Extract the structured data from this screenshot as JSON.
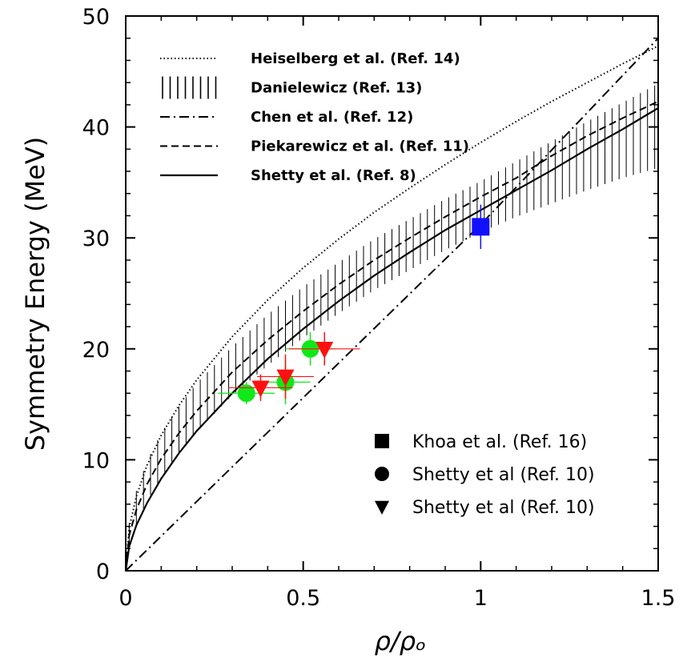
{
  "chart_data": {
    "type": "line",
    "xlabel": "ρ/ρₒ",
    "ylabel": "Symmetry Energy (MeV)",
    "xlim": [
      0,
      1.5
    ],
    "ylim": [
      0,
      50
    ],
    "xticks": [
      0,
      0.5,
      1,
      1.5
    ],
    "xtick_labels": [
      "0",
      "0.5",
      "1",
      "1.5"
    ],
    "yticks": [
      0,
      10,
      20,
      30,
      40,
      50
    ],
    "ytick_labels": [
      "0",
      "10",
      "20",
      "30",
      "40",
      "50"
    ],
    "grid": false,
    "line_legend_placement": "top-left",
    "marker_legend_placement": "bottom-right",
    "series": [
      {
        "name": "Heiselberg et al. (Ref. 14)",
        "style": "dotted",
        "color": "#000000",
        "x": [
          0,
          0.01,
          0.03,
          0.06,
          0.1,
          0.15,
          0.2,
          0.3,
          0.4,
          0.5,
          0.6,
          0.7,
          0.8,
          0.9,
          1.0,
          1.1,
          1.2,
          1.3,
          1.4,
          1.5
        ],
        "y": [
          0,
          3.9,
          6.7,
          9.5,
          12.2,
          14.9,
          17.2,
          21.1,
          24.4,
          27.3,
          29.9,
          32.3,
          34.5,
          36.6,
          38.6,
          40.5,
          42.3,
          44.0,
          45.7,
          47.3
        ]
      },
      {
        "name": "Danielewicz (Ref. 13)",
        "style": "error-band",
        "color": "#000000",
        "x": [
          0,
          0.01,
          0.03,
          0.06,
          0.1,
          0.15,
          0.2,
          0.3,
          0.4,
          0.5,
          0.6,
          0.7,
          0.8,
          0.9,
          1.0,
          1.1,
          1.2,
          1.3,
          1.4,
          1.5
        ],
        "y": [
          0,
          3.3,
          5.7,
          8.1,
          10.4,
          12.7,
          14.7,
          18.0,
          20.8,
          23.3,
          25.5,
          27.6,
          29.4,
          31.2,
          32.8,
          34.4,
          35.9,
          37.4,
          38.8,
          40.1
        ],
        "err": [
          0,
          1.0,
          1.5,
          1.8,
          2.0,
          2.1,
          2.2,
          2.2,
          2.3,
          2.3,
          2.3,
          2.3,
          2.3,
          2.3,
          2.3,
          2.5,
          2.8,
          3.1,
          3.4,
          3.8
        ]
      },
      {
        "name": "Chen et al. (Ref. 12)",
        "style": "dash-dot",
        "color": "#000000",
        "x": [
          0,
          0.5,
          1.0,
          1.5
        ],
        "y": [
          0,
          15.6,
          31.2,
          48.0
        ]
      },
      {
        "name": "Piekarewicz et al. (Ref. 11)",
        "style": "dashed",
        "color": "#000000",
        "x": [
          0,
          0.01,
          0.03,
          0.06,
          0.1,
          0.15,
          0.2,
          0.3,
          0.4,
          0.5,
          0.6,
          0.7,
          0.8,
          0.9,
          1.0,
          1.1,
          1.2,
          1.3,
          1.4,
          1.5
        ],
        "y": [
          0,
          3.2,
          5.5,
          7.8,
          10.1,
          12.4,
          14.4,
          17.9,
          20.8,
          23.4,
          25.8,
          28.0,
          30.0,
          31.9,
          33.7,
          35.4,
          37.4,
          39.2,
          40.8,
          42.3
        ]
      },
      {
        "name": "Shetty et al. (Ref. 8)",
        "style": "solid",
        "color": "#000000",
        "x": [
          0,
          0.01,
          0.03,
          0.06,
          0.1,
          0.15,
          0.2,
          0.3,
          0.4,
          0.5,
          0.6,
          0.7,
          0.8,
          0.9,
          1.0,
          1.1,
          1.2,
          1.3,
          1.4,
          1.5
        ],
        "y": [
          0,
          2.2,
          4.1,
          6.1,
          8.3,
          10.6,
          12.6,
          16.0,
          19.1,
          21.8,
          24.3,
          26.6,
          28.7,
          30.7,
          32.5,
          34.3,
          36.1,
          38.0,
          39.8,
          41.7
        ]
      }
    ],
    "markers": [
      {
        "name": "Khoa et al. (Ref. 16)",
        "shape": "square",
        "color": "#1010ff",
        "points": [
          {
            "x": 1.0,
            "y": 31,
            "xerr": 0,
            "yerr": 2
          }
        ]
      },
      {
        "name": "Shetty et al (Ref. 10)",
        "shape": "circle",
        "color": "#11e81a",
        "points": [
          {
            "x": 0.34,
            "y": 16,
            "xerr": 0.08,
            "yerr": 1.0
          },
          {
            "x": 0.45,
            "y": 17,
            "xerr": 0.07,
            "yerr": 2.0
          },
          {
            "x": 0.52,
            "y": 20,
            "xerr": 0.07,
            "yerr": 1.5
          }
        ]
      },
      {
        "name": "Shetty et al (Ref. 10)",
        "shape": "triangle-down",
        "color": "#ff1010",
        "points": [
          {
            "x": 0.38,
            "y": 16.5,
            "xerr": 0.09,
            "yerr": 1.2
          },
          {
            "x": 0.45,
            "y": 17.5,
            "xerr": 0.08,
            "yerr": 2.0
          },
          {
            "x": 0.56,
            "y": 20,
            "xerr": 0.1,
            "yerr": 1.5
          }
        ]
      }
    ]
  }
}
